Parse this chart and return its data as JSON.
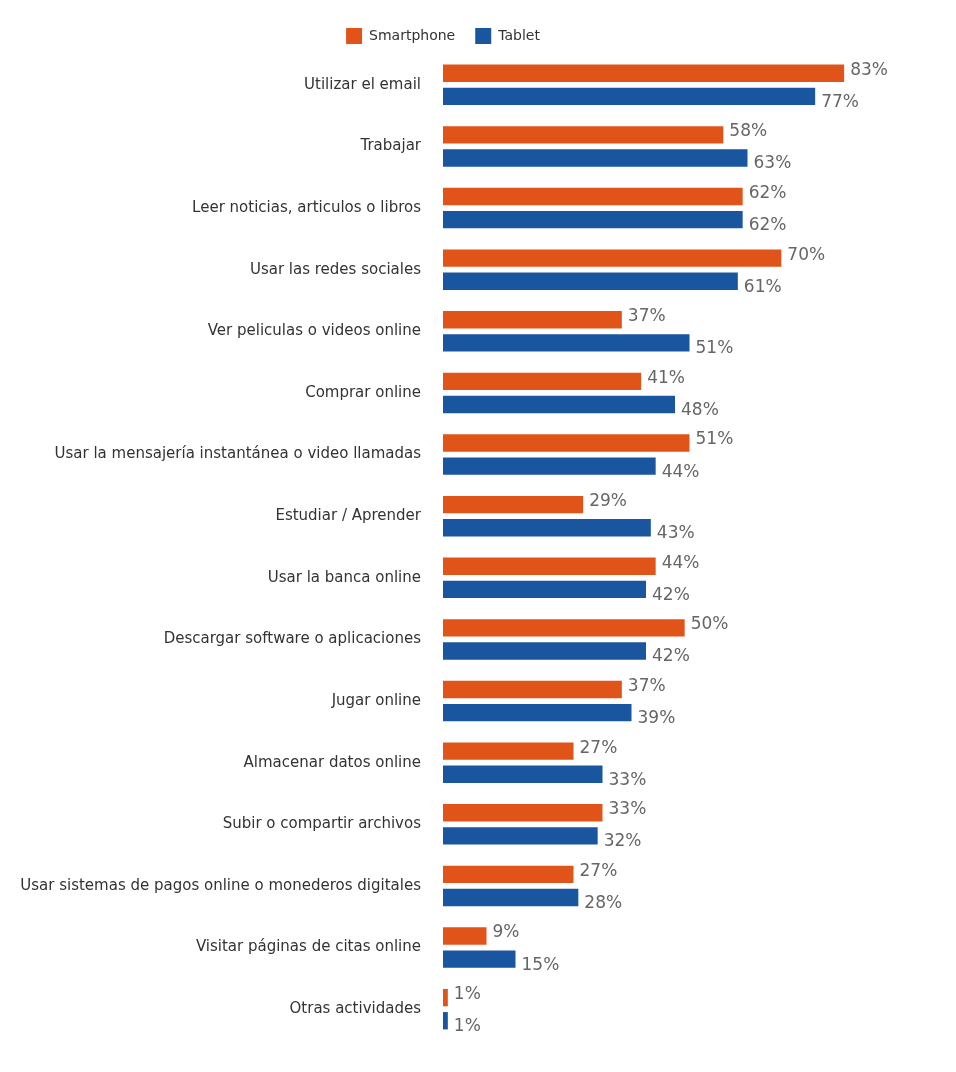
{
  "chart_data": {
    "type": "bar",
    "orientation": "horizontal",
    "legend": "top",
    "tick_labels": "y",
    "categories": [
      "Utilizar el email",
      "Trabajar",
      "Leer noticias, articulos o libros",
      "Usar las redes sociales",
      "Ver peliculas o videos online",
      "Comprar online",
      "Usar la mensajería instantánea o video llamadas",
      "Estudiar / Aprender",
      "Usar la banca online",
      "Descargar software o aplicaciones",
      "Jugar online",
      "Almacenar datos online",
      "Subir o compartir archivos",
      "Usar sistemas de pagos online o monederos digitales",
      "Visitar páginas de citas online",
      "Otras actividades"
    ],
    "series": [
      {
        "name": "Smartphone",
        "color": "#e0541a",
        "values": [
          83,
          58,
          62,
          70,
          37,
          41,
          51,
          29,
          44,
          50,
          37,
          27,
          33,
          27,
          9,
          1
        ],
        "value_labels": [
          "83%",
          "58%",
          "62%",
          "70%",
          "37%",
          "41%",
          "51%",
          "29%",
          "44%",
          "50%",
          "37%",
          "27%",
          "33%",
          "27%",
          "9%",
          "1%"
        ]
      },
      {
        "name": "Tablet",
        "color": "#1a55a0",
        "values": [
          77,
          63,
          62,
          61,
          51,
          48,
          44,
          43,
          42,
          42,
          39,
          33,
          32,
          28,
          15,
          1
        ],
        "value_labels": [
          "77%",
          "63%",
          "62%",
          "61%",
          "51%",
          "48%",
          "44%",
          "43%",
          "42%",
          "42%",
          "39%",
          "33%",
          "32%",
          "28%",
          "15%",
          "1%"
        ]
      }
    ]
  }
}
